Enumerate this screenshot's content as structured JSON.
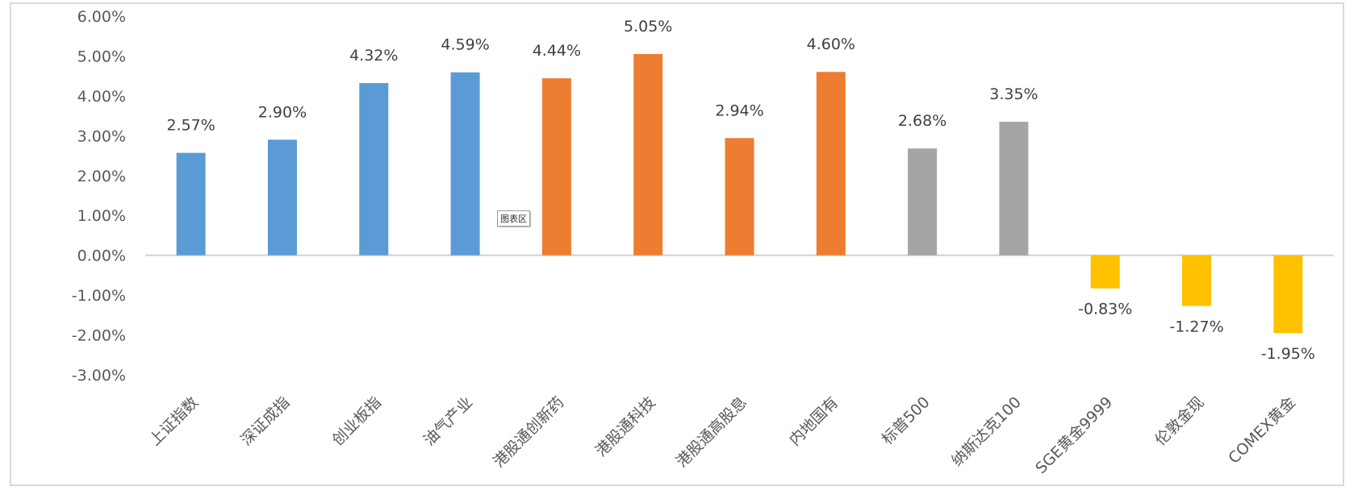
{
  "chart_data": {
    "type": "bar",
    "title": "",
    "xlabel": "",
    "ylabel": "",
    "ylim": [
      -3,
      6
    ],
    "y_ticks": [
      "6.00%",
      "5.00%",
      "4.00%",
      "3.00%",
      "2.00%",
      "1.00%",
      "0.00%",
      "-1.00%",
      "-2.00%",
      "-3.00%"
    ],
    "grid": false,
    "legend": "none",
    "categories": [
      "上证指数",
      "深证成指",
      "创业板指",
      "油气产业",
      "港股通创新药",
      "港股通科技",
      "港股通高股息",
      "内地国有",
      "标普500",
      "纳斯达克100",
      "SGE黄金9999",
      "伦敦金现",
      "COMEX黄金"
    ],
    "values": [
      2.57,
      2.9,
      4.32,
      4.59,
      4.44,
      5.05,
      2.94,
      4.6,
      2.68,
      3.35,
      -0.83,
      -1.27,
      -1.95
    ],
    "data_labels": [
      "2.57%",
      "2.90%",
      "4.32%",
      "4.59%",
      "4.44%",
      "5.05%",
      "2.94%",
      "4.60%",
      "2.68%",
      "3.35%",
      "-0.83%",
      "-1.27%",
      "-1.95%"
    ],
    "bar_colors": [
      "#5b9bd5",
      "#5b9bd5",
      "#5b9bd5",
      "#5b9bd5",
      "#ed7d31",
      "#ed7d31",
      "#ed7d31",
      "#ed7d31",
      "#a5a5a5",
      "#a5a5a5",
      "#ffc000",
      "#ffc000",
      "#ffc000"
    ]
  },
  "chart_area_tag": "图表区"
}
